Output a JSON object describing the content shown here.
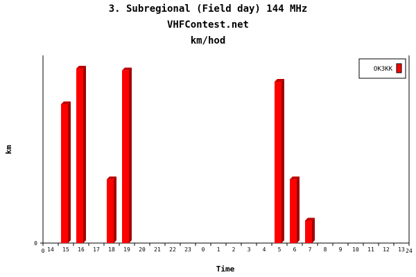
{
  "chart_data": {
    "type": "bar",
    "title": "3. Subregional (Field day) 144 MHz",
    "subtitle": "VHFContest.net",
    "subtitle2": "km/hod",
    "xlabel": "Time",
    "ylabel": "km",
    "y_tick_labels": [
      "0"
    ],
    "x_start_label": "0",
    "x_end_label": "24",
    "categories": [
      "14",
      "15",
      "16",
      "17",
      "18",
      "19",
      "20",
      "21",
      "22",
      "23",
      "0",
      "1",
      "2",
      "3",
      "4",
      "5",
      "6",
      "7",
      "8",
      "9",
      "10",
      "11",
      "12",
      "13"
    ],
    "series": [
      {
        "name": "OK3KK",
        "color": "#ff0000",
        "values": [
          0,
          74,
          93,
          0,
          34,
          92,
          0,
          0,
          0,
          0,
          0,
          0,
          0,
          0,
          0,
          86,
          34,
          12,
          0,
          0,
          0,
          0,
          0,
          0
        ]
      }
    ],
    "ylim": [
      0,
      100
    ],
    "legend": "top-right",
    "grid": false
  }
}
